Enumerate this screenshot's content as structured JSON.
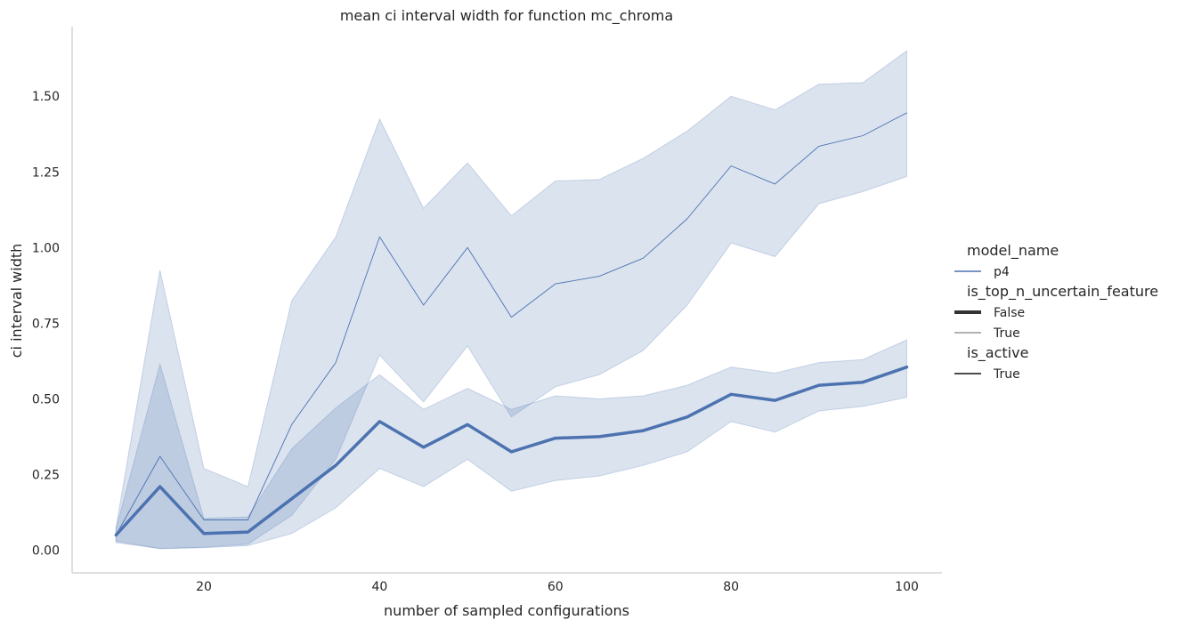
{
  "chart_data": {
    "type": "line",
    "title": "mean ci interval width for function mc_chroma",
    "xlabel": "number of sampled configurations",
    "ylabel": "ci interval width",
    "xlim": [
      5,
      104
    ],
    "ylim": [
      -0.075,
      1.73
    ],
    "xticks": [
      20,
      40,
      60,
      80,
      100
    ],
    "xtick_labels": [
      "20",
      "40",
      "60",
      "80",
      "100"
    ],
    "yticks": [
      0.0,
      0.25,
      0.5,
      0.75,
      1.0,
      1.25,
      1.5
    ],
    "ytick_labels": [
      "0.00",
      "0.25",
      "0.50",
      "0.75",
      "1.00",
      "1.25",
      "1.50"
    ],
    "grid": false,
    "legend_position": "right",
    "x": [
      10,
      15,
      20,
      25,
      30,
      35,
      40,
      45,
      50,
      55,
      60,
      65,
      70,
      75,
      80,
      85,
      90,
      95,
      100
    ],
    "series": [
      {
        "model_name": "p4",
        "is_top_n_uncertain_feature": "False",
        "is_active": "True",
        "line_width": "thick",
        "values": [
          0.05,
          0.21,
          0.055,
          0.06,
          0.17,
          0.28,
          0.425,
          0.34,
          0.415,
          0.325,
          0.37,
          0.375,
          0.395,
          0.44,
          0.515,
          0.495,
          0.545,
          0.555,
          0.605
        ],
        "ci_low": [
          0.03,
          0.005,
          0.008,
          0.015,
          0.055,
          0.14,
          0.27,
          0.21,
          0.3,
          0.195,
          0.23,
          0.245,
          0.28,
          0.325,
          0.425,
          0.39,
          0.46,
          0.475,
          0.505
        ],
        "ci_high": [
          0.07,
          0.615,
          0.105,
          0.11,
          0.335,
          0.47,
          0.58,
          0.465,
          0.535,
          0.465,
          0.51,
          0.5,
          0.51,
          0.545,
          0.605,
          0.585,
          0.62,
          0.63,
          0.695
        ]
      },
      {
        "model_name": "p4",
        "is_top_n_uncertain_feature": "True",
        "is_active": "True",
        "line_width": "thin",
        "values": [
          0.05,
          0.31,
          0.1,
          0.1,
          0.415,
          0.62,
          1.035,
          0.81,
          1.0,
          0.77,
          0.88,
          0.905,
          0.965,
          1.095,
          1.27,
          1.21,
          1.335,
          1.37,
          1.445
        ],
        "ci_low": [
          0.025,
          0.005,
          0.01,
          0.02,
          0.115,
          0.3,
          0.645,
          0.49,
          0.675,
          0.44,
          0.54,
          0.58,
          0.66,
          0.81,
          1.015,
          0.97,
          1.145,
          1.185,
          1.235
        ],
        "ci_high": [
          0.075,
          0.925,
          0.27,
          0.21,
          0.825,
          1.035,
          1.425,
          1.13,
          1.28,
          1.105,
          1.22,
          1.225,
          1.295,
          1.385,
          1.5,
          1.455,
          1.54,
          1.545,
          1.65
        ]
      }
    ],
    "colors": {
      "line": "#4c72b0",
      "band": "#4c72b0",
      "text": "#262626",
      "spine": "#cccccc"
    },
    "legend": {
      "sections": [
        {
          "title": "model_name",
          "entries": [
            {
              "label": "p4",
              "style": "color"
            }
          ]
        },
        {
          "title": "is_top_n_uncertain_feature",
          "entries": [
            {
              "label": "False",
              "style": "thick"
            },
            {
              "label": "True",
              "style": "thin"
            }
          ]
        },
        {
          "title": "is_active",
          "entries": [
            {
              "label": "True",
              "style": "solid"
            }
          ]
        }
      ]
    }
  }
}
